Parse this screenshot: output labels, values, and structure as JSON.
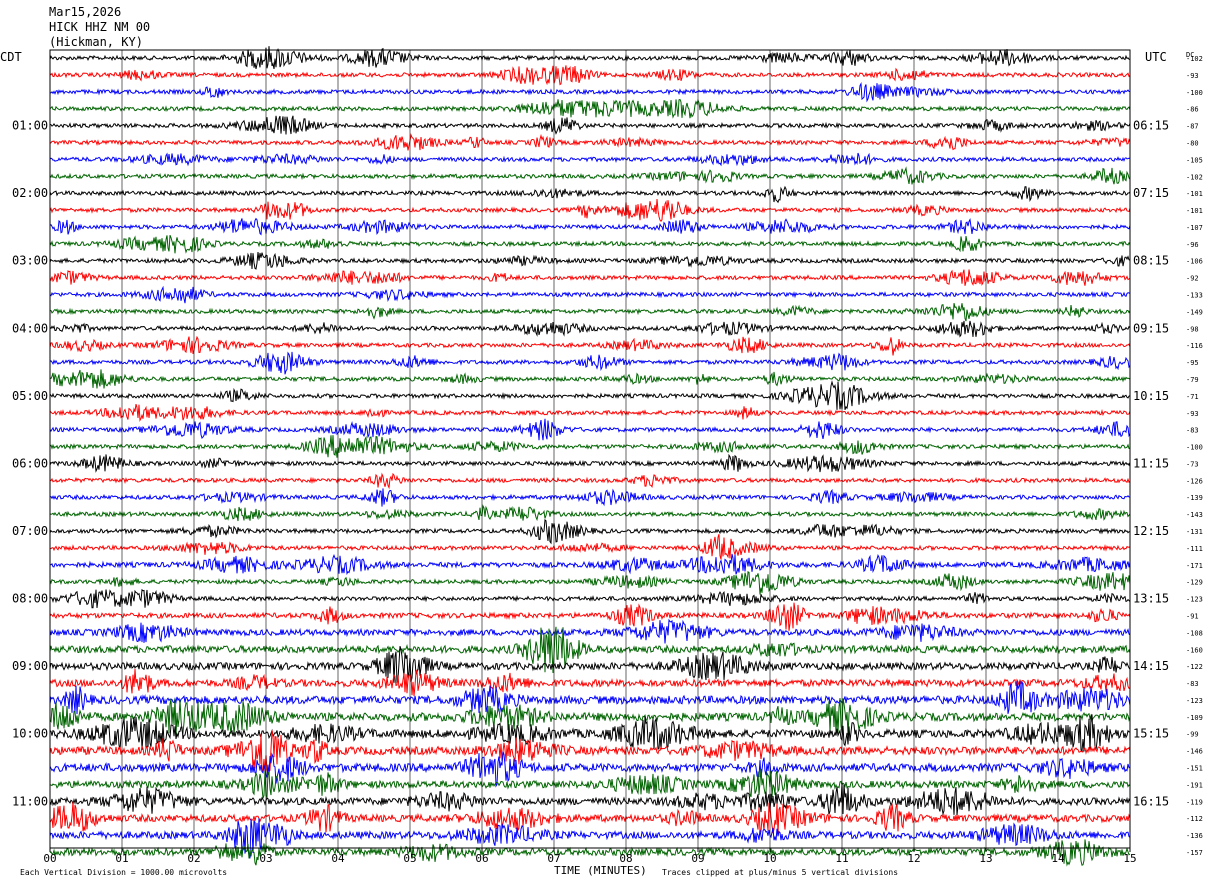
{
  "header": {
    "date": "Mar15,2026",
    "station": "HICK HHZ NM 00",
    "location": "(Hickman, KY)"
  },
  "left_zone_label": "CDT",
  "right_zone_label": "UTC",
  "dc_label": "DC",
  "footer": {
    "scale_note": "Each Vertical Division = 1000.00 microvolts",
    "x_label": "TIME (MINUTES)",
    "clip_note": "Traces clipped at plus/minus 5 vertical divisions"
  },
  "colors": {
    "trace_cycle": [
      "#000000",
      "#ff0000",
      "#0000ff",
      "#006400"
    ],
    "grid": "#000000"
  },
  "chart_data": {
    "type": "line",
    "title": "",
    "xlabel": "TIME (MINUTES)",
    "ylabel": "",
    "xlim": [
      0,
      15
    ],
    "x_ticks": [
      "00",
      "01",
      "02",
      "03",
      "04",
      "05",
      "06",
      "07",
      "08",
      "09",
      "10",
      "11",
      "12",
      "13",
      "14",
      "15"
    ],
    "row_count": 48,
    "left_time_labels": [
      {
        "row": 4,
        "label": "01:00"
      },
      {
        "row": 8,
        "label": "02:00"
      },
      {
        "row": 12,
        "label": "03:00"
      },
      {
        "row": 16,
        "label": "04:00"
      },
      {
        "row": 20,
        "label": "05:00"
      },
      {
        "row": 24,
        "label": "06:00"
      },
      {
        "row": 28,
        "label": "07:00"
      },
      {
        "row": 32,
        "label": "08:00"
      },
      {
        "row": 36,
        "label": "09:00"
      },
      {
        "row": 40,
        "label": "10:00"
      },
      {
        "row": 44,
        "label": "11:00"
      }
    ],
    "right_time_labels": [
      {
        "row": 4,
        "label": "06:15"
      },
      {
        "row": 8,
        "label": "07:15"
      },
      {
        "row": 12,
        "label": "08:15"
      },
      {
        "row": 16,
        "label": "09:15"
      },
      {
        "row": 20,
        "label": "10:15"
      },
      {
        "row": 24,
        "label": "11:15"
      },
      {
        "row": 28,
        "label": "12:15"
      },
      {
        "row": 32,
        "label": "13:15"
      },
      {
        "row": 36,
        "label": "14:15"
      },
      {
        "row": 40,
        "label": "15:15"
      },
      {
        "row": 44,
        "label": "16:15"
      }
    ],
    "dc_offsets": [
      "-102",
      "-93",
      "-100",
      "-86",
      "-87",
      "-80",
      "-105",
      "-102",
      "-101",
      "-101",
      "-107",
      "-96",
      "-106",
      "-92",
      "-133",
      "-149",
      "-98",
      "-116",
      "-95",
      "-79",
      "-71",
      "-93",
      "-83",
      "-100",
      "-73",
      "-126",
      "-139",
      "-143",
      "-131",
      "-111",
      "-171",
      "-129",
      "-123",
      "-91",
      "-108",
      "-160",
      "-122",
      "-83",
      "-123",
      "-109",
      "-99",
      "-146",
      "-151",
      "-191",
      "-119",
      "-112",
      "-136",
      "-157"
    ],
    "row_amplitude": [
      2,
      2,
      2,
      2,
      2,
      2,
      2,
      2,
      2,
      2,
      2,
      2,
      2,
      2,
      2,
      2,
      2,
      2,
      2,
      2,
      2,
      2,
      2,
      2,
      2,
      2,
      2,
      2,
      2,
      2,
      2.5,
      2,
      2,
      2.5,
      3,
      3.5,
      3.5,
      3.5,
      4,
      4,
      4,
      4,
      4,
      3.5,
      3.5,
      3.5,
      3.5,
      3.5
    ]
  }
}
